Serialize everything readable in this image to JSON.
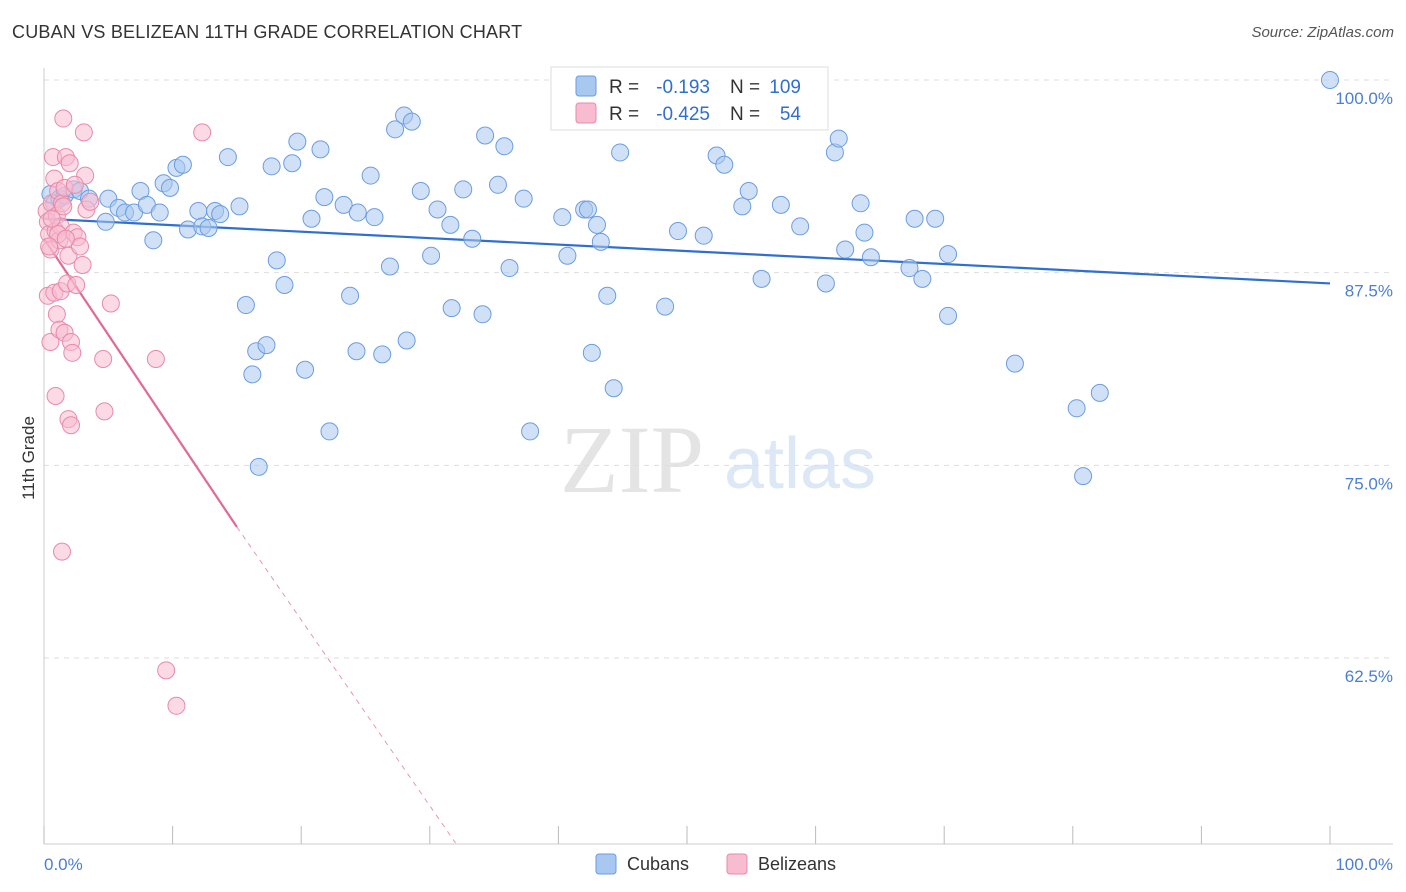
{
  "header": {
    "title": "CUBAN VS BELIZEAN 11TH GRADE CORRELATION CHART",
    "source": "Source: ZipAtlas.com"
  },
  "watermark": {
    "zip": "ZIP",
    "atlas": "atlas"
  },
  "colors": {
    "cuban_fill": "#a9c8f0",
    "cuban_stroke": "#6b9de0",
    "cuban_line": "#2f6fd0",
    "belizean_fill": "#f7bcd0",
    "belizean_stroke": "#e88aa8",
    "belizean_line": "#e06a96",
    "grid": "#dddddd",
    "tick_label": "#4a7fd4"
  },
  "legend": {
    "rows": [
      {
        "r_label": "R =",
        "r_value": "-0.193",
        "n_label": "N =",
        "n_value": "109"
      },
      {
        "r_label": "R =",
        "r_value": "-0.425",
        "n_label": "N =",
        "n_value": "54"
      }
    ]
  },
  "bottom_legend": {
    "cubans": "Cubans",
    "belizeans": "Belizeans"
  },
  "chart_data": {
    "type": "scatter",
    "title": "CUBAN VS BELIZEAN 11TH GRADE CORRELATION CHART",
    "xlabel": "",
    "ylabel": "11th Grade",
    "xlim": [
      0,
      100
    ],
    "ylim": [
      50.5,
      101.5
    ],
    "x_tick_labels": [
      "0.0%",
      "100.0%"
    ],
    "y_ticks": [
      100.0,
      87.5,
      75.0,
      62.5
    ],
    "y_tick_labels": [
      "100.0%",
      "87.5%",
      "75.0%",
      "62.5%"
    ],
    "grid": "horizontal dashed",
    "legend_position": "top-center",
    "series": [
      {
        "name": "Cubans",
        "r": -0.193,
        "n": 109,
        "trend": {
          "x": [
            0,
            100
          ],
          "y": [
            91.0,
            86.8
          ]
        },
        "points": [
          [
            0.5,
            92.6
          ],
          [
            0.8,
            92.0
          ],
          [
            1.2,
            92.3
          ],
          [
            1.6,
            92.5
          ],
          [
            2.3,
            92.9
          ],
          [
            2.8,
            92.8
          ],
          [
            3.5,
            92.3
          ],
          [
            4.8,
            90.8
          ],
          [
            5.0,
            92.3
          ],
          [
            5.8,
            91.7
          ],
          [
            6.3,
            91.4
          ],
          [
            7.0,
            91.4
          ],
          [
            7.5,
            92.8
          ],
          [
            8.0,
            91.9
          ],
          [
            8.5,
            89.6
          ],
          [
            9.0,
            91.4
          ],
          [
            9.3,
            93.3
          ],
          [
            9.8,
            93.0
          ],
          [
            10.3,
            94.3
          ],
          [
            10.8,
            94.5
          ],
          [
            11.2,
            90.3
          ],
          [
            12.0,
            91.5
          ],
          [
            12.3,
            90.5
          ],
          [
            12.8,
            90.4
          ],
          [
            13.3,
            91.5
          ],
          [
            13.7,
            91.3
          ],
          [
            14.3,
            95.0
          ],
          [
            15.2,
            91.8
          ],
          [
            15.7,
            85.4
          ],
          [
            16.2,
            80.9
          ],
          [
            16.5,
            82.4
          ],
          [
            16.7,
            74.9
          ],
          [
            17.3,
            82.8
          ],
          [
            17.7,
            94.4
          ],
          [
            18.1,
            88.3
          ],
          [
            18.7,
            86.7
          ],
          [
            19.3,
            94.6
          ],
          [
            19.7,
            96.0
          ],
          [
            20.3,
            81.2
          ],
          [
            20.8,
            91.0
          ],
          [
            21.5,
            95.5
          ],
          [
            21.8,
            92.4
          ],
          [
            22.2,
            77.2
          ],
          [
            23.3,
            91.9
          ],
          [
            23.8,
            86.0
          ],
          [
            24.3,
            82.4
          ],
          [
            24.4,
            91.4
          ],
          [
            25.4,
            93.8
          ],
          [
            25.7,
            91.1
          ],
          [
            26.3,
            82.2
          ],
          [
            26.9,
            87.9
          ],
          [
            27.3,
            96.8
          ],
          [
            28.0,
            97.7
          ],
          [
            28.2,
            83.1
          ],
          [
            28.6,
            97.3
          ],
          [
            29.3,
            92.8
          ],
          [
            30.1,
            88.6
          ],
          [
            30.6,
            91.6
          ],
          [
            31.6,
            90.6
          ],
          [
            31.7,
            85.2
          ],
          [
            32.6,
            92.9
          ],
          [
            33.3,
            89.7
          ],
          [
            34.1,
            84.8
          ],
          [
            34.3,
            96.4
          ],
          [
            35.3,
            93.2
          ],
          [
            35.8,
            95.7
          ],
          [
            36.2,
            87.8
          ],
          [
            37.3,
            92.3
          ],
          [
            37.8,
            77.2
          ],
          [
            40.3,
            91.1
          ],
          [
            40.7,
            88.6
          ],
          [
            42.0,
            91.6
          ],
          [
            42.3,
            91.6
          ],
          [
            42.6,
            82.3
          ],
          [
            43.0,
            90.6
          ],
          [
            43.3,
            89.5
          ],
          [
            43.8,
            86.0
          ],
          [
            44.3,
            80.0
          ],
          [
            44.8,
            95.3
          ],
          [
            48.3,
            85.3
          ],
          [
            49.3,
            90.2
          ],
          [
            51.3,
            89.9
          ],
          [
            52.3,
            95.1
          ],
          [
            52.9,
            94.5
          ],
          [
            54.3,
            91.8
          ],
          [
            54.8,
            92.8
          ],
          [
            55.8,
            87.1
          ],
          [
            57.3,
            91.9
          ],
          [
            58.8,
            90.5
          ],
          [
            60.8,
            86.8
          ],
          [
            61.5,
            95.3
          ],
          [
            61.8,
            96.2
          ],
          [
            62.3,
            89.0
          ],
          [
            63.5,
            92.0
          ],
          [
            63.8,
            90.1
          ],
          [
            64.3,
            88.5
          ],
          [
            67.3,
            87.8
          ],
          [
            67.7,
            91.0
          ],
          [
            68.3,
            87.1
          ],
          [
            69.3,
            91.0
          ],
          [
            70.3,
            88.7
          ],
          [
            70.3,
            84.7
          ],
          [
            75.5,
            81.6
          ],
          [
            80.3,
            78.7
          ],
          [
            80.8,
            74.3
          ],
          [
            82.1,
            79.7
          ],
          [
            100.0,
            100.0
          ]
        ]
      },
      {
        "name": "Belizeans",
        "r": -0.425,
        "n": 54,
        "trend": {
          "x": [
            0,
            15
          ],
          "y": [
            89.7,
            71.0
          ]
        },
        "trend_extension": {
          "x": [
            15,
            32
          ],
          "y": [
            71.0,
            50.5
          ]
        },
        "points": [
          [
            0.2,
            91.5
          ],
          [
            0.3,
            90.8
          ],
          [
            0.4,
            90.0
          ],
          [
            0.5,
            89.0
          ],
          [
            0.6,
            92.0
          ],
          [
            0.7,
            95.0
          ],
          [
            0.8,
            93.6
          ],
          [
            0.9,
            90.2
          ],
          [
            1.0,
            91.2
          ],
          [
            1.1,
            92.8
          ],
          [
            1.2,
            89.6
          ],
          [
            1.3,
            90.5
          ],
          [
            1.4,
            92.0
          ],
          [
            1.5,
            91.8
          ],
          [
            1.6,
            93.0
          ],
          [
            0.3,
            86.0
          ],
          [
            0.5,
            83.0
          ],
          [
            0.8,
            86.2
          ],
          [
            1.0,
            84.8
          ],
          [
            1.2,
            83.8
          ],
          [
            1.3,
            86.3
          ],
          [
            1.5,
            97.5
          ],
          [
            1.6,
            83.6
          ],
          [
            1.7,
            95.0
          ],
          [
            1.8,
            86.8
          ],
          [
            1.9,
            88.6
          ],
          [
            2.0,
            94.6
          ],
          [
            2.1,
            83.0
          ],
          [
            2.2,
            82.3
          ],
          [
            2.3,
            90.1
          ],
          [
            2.5,
            86.7
          ],
          [
            2.6,
            89.8
          ],
          [
            2.8,
            89.2
          ],
          [
            3.0,
            88.0
          ],
          [
            3.1,
            96.6
          ],
          [
            3.2,
            93.8
          ],
          [
            3.3,
            91.6
          ],
          [
            0.9,
            79.5
          ],
          [
            1.4,
            69.4
          ],
          [
            1.9,
            78.0
          ],
          [
            2.1,
            77.6
          ],
          [
            4.6,
            81.9
          ],
          [
            4.7,
            78.5
          ],
          [
            5.2,
            85.5
          ],
          [
            8.7,
            81.9
          ],
          [
            9.5,
            61.7
          ],
          [
            10.3,
            59.4
          ],
          [
            12.3,
            96.6
          ],
          [
            0.6,
            91.0
          ],
          [
            1.1,
            90.0
          ],
          [
            1.7,
            89.7
          ],
          [
            2.4,
            93.2
          ],
          [
            3.6,
            92.1
          ],
          [
            0.4,
            89.2
          ]
        ]
      }
    ]
  }
}
